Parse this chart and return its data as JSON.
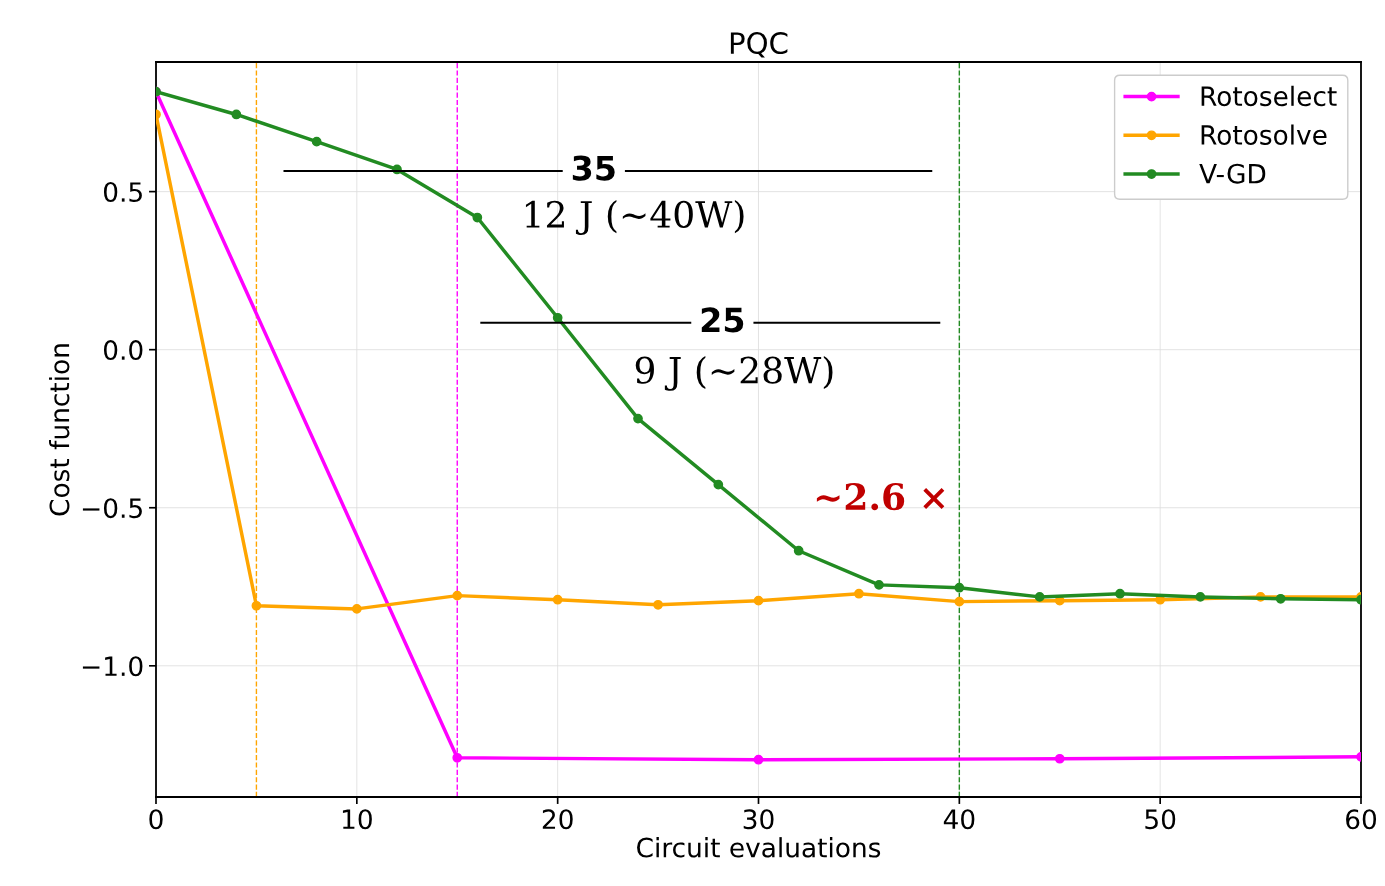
{
  "chart_data": {
    "type": "line",
    "title": "PQC",
    "xlabel": "Circuit evaluations",
    "ylabel": "Cost function",
    "xlim": [
      0,
      60
    ],
    "xticks": [
      0,
      10,
      20,
      30,
      40,
      50,
      60
    ],
    "ylim": [
      -1.415,
      0.91
    ],
    "yticks": [
      {
        "value": -1.0,
        "label": "−1.0"
      },
      {
        "value": -0.5,
        "label": "−0.5"
      },
      {
        "value": 0.0,
        "label": "0.0"
      },
      {
        "value": 0.5,
        "label": "0.5"
      }
    ],
    "grid": true,
    "legend": "top right",
    "marker": "circle",
    "line_style": "solid",
    "series": [
      {
        "name": "Rotoselect",
        "color": "#ff00ff",
        "x": [
          0,
          15,
          30,
          45,
          60
        ],
        "values": [
          0.816,
          -1.291,
          -1.297,
          -1.294,
          -1.288
        ]
      },
      {
        "name": "Rotosolve",
        "color": "#ffa500",
        "x": [
          0,
          5,
          10,
          15,
          20,
          25,
          30,
          35,
          40,
          45,
          50,
          55,
          60
        ],
        "values": [
          0.744,
          -0.81,
          -0.82,
          -0.778,
          -0.791,
          -0.807,
          -0.794,
          -0.772,
          -0.797,
          -0.794,
          -0.791,
          -0.782,
          -0.782
        ]
      },
      {
        "name": "V-GD",
        "color": "#228b22",
        "x": [
          0,
          4,
          8,
          12,
          16,
          20,
          24,
          28,
          32,
          36,
          40,
          44,
          48,
          52,
          56,
          60
        ],
        "values": [
          0.816,
          0.744,
          0.658,
          0.57,
          0.418,
          0.101,
          -0.218,
          -0.427,
          -0.636,
          -0.744,
          -0.753,
          -0.782,
          -0.772,
          -0.782,
          -0.788,
          -0.791
        ]
      }
    ],
    "ref_lines": [
      {
        "axis": "x",
        "value": 5,
        "color": "#ffa500",
        "line_style": "dashed"
      },
      {
        "axis": "x",
        "value": 15,
        "color": "#ff00ff",
        "line_style": "dashed"
      },
      {
        "axis": "x",
        "value": 40,
        "color": "#228b22",
        "line_style": "dashed"
      }
    ],
    "annotations": [
      "35",
      "12 J (~40W)",
      "25",
      "9 J (~28W)",
      "~2.6 ×"
    ]
  }
}
